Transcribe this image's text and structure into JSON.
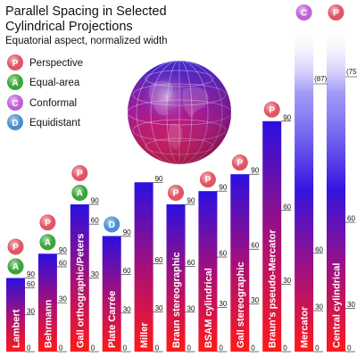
{
  "title_lines": [
    "Parallel Spacing in Selected",
    "Cylindrical Projections"
  ],
  "subtitle": "Equatorial aspect, normalized width",
  "legend": [
    {
      "key": "P",
      "label": "Perspective",
      "color": "#e05565"
    },
    {
      "key": "A",
      "label": "Equal-area",
      "color": "#3aa53a"
    },
    {
      "key": "C",
      "label": "Conformal",
      "color": "#c060d8"
    },
    {
      "key": "D",
      "label": "Equidistant",
      "color": "#4a90d0"
    }
  ],
  "colors": {
    "bar_top": "#2a10e0",
    "bar_bottom": "#ff1a1a",
    "globe_top": "#3a2ad0",
    "globe_bottom": "#ff2020"
  },
  "chart_data": {
    "type": "bar",
    "title": "Parallel Spacing in Selected Cylindrical Projections",
    "subtitle": "Equatorial aspect, normalized width",
    "categories": [
      "Lambert",
      "Behrmann",
      "Gall orthographic/Peters",
      "Plate Carrée",
      "Miller",
      "Braun stereographic",
      "BSAM cylindrical",
      "Gall stereographic",
      "Braun's pseudo-Mercator",
      "Mercator",
      "Central cylindrical"
    ],
    "values": [
      1.0,
      1.33,
      2.0,
      1.57,
      2.3,
      2.0,
      2.18,
      2.41,
      3.13,
      10,
      10
    ],
    "property_badges": [
      [
        "P",
        "A"
      ],
      [
        "P",
        "A"
      ],
      [
        "P",
        "A"
      ],
      [
        "D"
      ],
      [],
      [
        "P"
      ],
      [
        "P"
      ],
      [
        "P"
      ],
      [
        "P"
      ],
      [
        "C"
      ],
      [
        "P"
      ]
    ],
    "ticks": [
      [
        "0",
        "30",
        "60",
        "90"
      ],
      [
        "0",
        "30",
        "60",
        "90"
      ],
      [
        "0",
        "30",
        "60",
        "90"
      ],
      [
        "0",
        "30",
        "60",
        "90"
      ],
      [
        "0",
        "30",
        "60",
        "90"
      ],
      [
        "0",
        "30",
        "60",
        "90"
      ],
      [
        "0",
        "30",
        "60",
        "90"
      ],
      [
        "0",
        "30",
        "60",
        "90"
      ],
      [
        "0",
        "30",
        "60",
        "90"
      ],
      [
        "0",
        "30",
        "60"
      ],
      [
        "0",
        "30",
        "60"
      ]
    ],
    "top_labels": [
      "",
      "",
      "",
      "",
      "",
      "",
      "",
      "",
      "",
      "(87)",
      "(75)"
    ],
    "bar_style": "gradient red to blue; Mercator and Central cylindrical fade out at top (unbounded)"
  }
}
